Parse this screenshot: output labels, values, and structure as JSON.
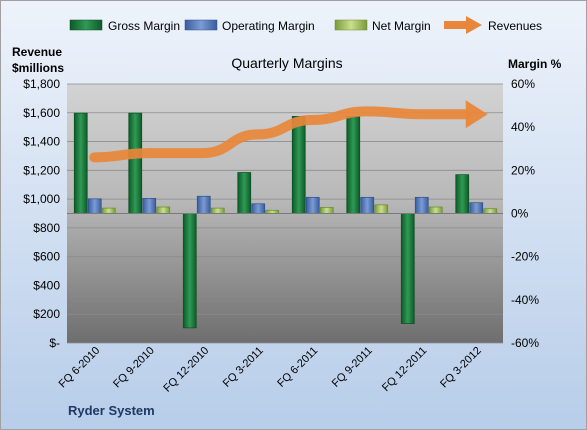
{
  "chart_data": {
    "type": "bar",
    "title": "Quarterly Margins",
    "company": "Ryder System",
    "y_left_label_line1": "Revenue",
    "y_left_label_line2": "$millions",
    "y_right_label": "Margin %",
    "y_left_range": [
      0,
      1800
    ],
    "y_right_range": [
      -60,
      60
    ],
    "y_left_ticks": [
      "$1,800",
      "$1,600",
      "$1,400",
      "$1,200",
      "$1,000",
      "$800",
      "$600",
      "$400",
      "$200",
      "$-"
    ],
    "y_right_ticks": [
      "60%",
      "40%",
      "20%",
      "0%",
      "-20%",
      "-40%",
      "-60%"
    ],
    "grid": true,
    "legend_position": "top",
    "categories": [
      "FQ 6-2010",
      "FQ 9-2010",
      "FQ 12-2010",
      "FQ 3-2011",
      "FQ 6-2011",
      "FQ 9-2011",
      "FQ 12-2011",
      "FQ 3-2012"
    ],
    "series": [
      {
        "name": "Gross Margin",
        "axis": "right",
        "unit": "%",
        "color": "#1f7a3c",
        "values": [
          46.5,
          46.5,
          -53,
          19,
          45,
          45,
          -51,
          18
        ]
      },
      {
        "name": "Operating Margin",
        "axis": "right",
        "unit": "%",
        "color": "#4a6fb5",
        "values": [
          6.8,
          7,
          8,
          4.5,
          7.5,
          7.5,
          7.5,
          5
        ]
      },
      {
        "name": "Net Margin",
        "axis": "right",
        "unit": "%",
        "color": "#9bbb59",
        "values": [
          2.5,
          3,
          2.5,
          1.5,
          2.8,
          4,
          3,
          2.2
        ]
      },
      {
        "name": "Revenues",
        "axis": "left",
        "unit": "$millions",
        "color": "#e8873a",
        "values": [
          1290,
          1320,
          1320,
          1450,
          1550,
          1610,
          1590,
          1590
        ]
      }
    ]
  }
}
